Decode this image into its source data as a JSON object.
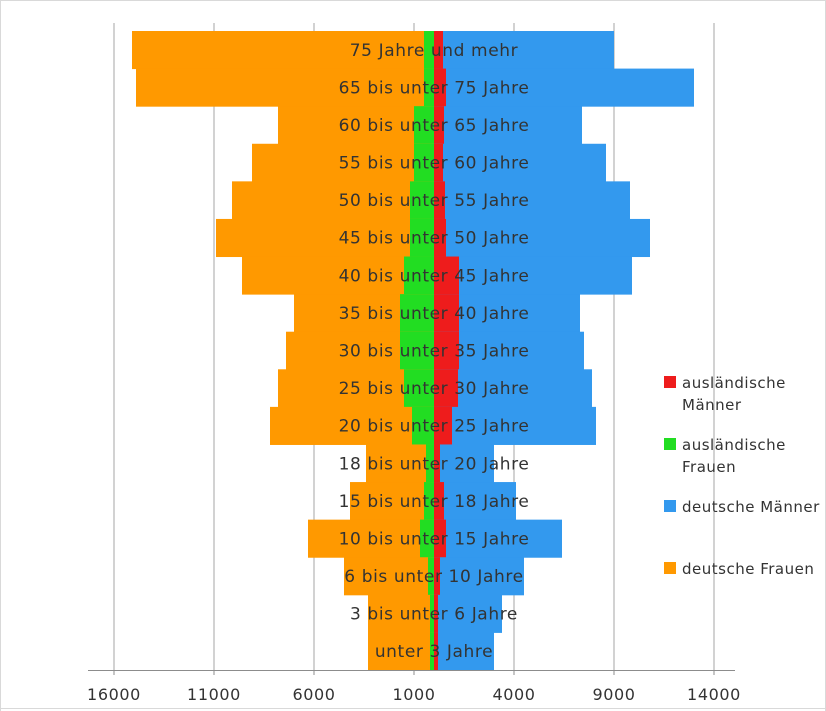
{
  "chart_data": {
    "type": "bar",
    "orientation": "horizontal-population-pyramid",
    "categories": [
      "75 Jahre und mehr",
      "65 bis unter 75 Jahre",
      "60 bis unter 65 Jahre",
      "55 bis unter 60 Jahre",
      "50 bis unter 55 Jahre",
      "45 bis unter 50 Jahre",
      "40 bis unter 45 Jahre",
      "35 bis unter 40 Jahre",
      "30 bis unter 35 Jahre",
      "25 bis unter 30 Jahre",
      "20 bis unter 25 Jahre",
      "18 bis unter 20 Jahre",
      "15 bis unter 18 Jahre",
      "10 bis unter 15 Jahre",
      "6 bis unter 10 Jahre",
      "3 bis unter 6 Jahre",
      "unter 3 Jahre"
    ],
    "series": [
      {
        "name": "ausländische Männer",
        "side": "right",
        "color": "#ee1c1c",
        "values": [
          450,
          600,
          500,
          450,
          550,
          600,
          1250,
          1250,
          1250,
          1200,
          900,
          300,
          500,
          600,
          300,
          200,
          200
        ]
      },
      {
        "name": "ausländische Frauen",
        "side": "left",
        "color": "#22dd22",
        "values": [
          500,
          500,
          1000,
          1000,
          1200,
          1200,
          1500,
          1700,
          1700,
          1500,
          1100,
          400,
          500,
          700,
          300,
          200,
          200
        ]
      },
      {
        "name": "deutsche Männer",
        "side": "right",
        "color": "#3399ee",
        "values": [
          9000,
          13000,
          7400,
          8600,
          9800,
          10800,
          9900,
          7300,
          7500,
          7900,
          8100,
          3000,
          4100,
          6400,
          4500,
          3400,
          3000
        ]
      },
      {
        "name": "deutsche Frauen",
        "side": "left",
        "color": "#ff9900",
        "values": [
          15100,
          14900,
          7800,
          9100,
          10100,
          10900,
          9600,
          7000,
          7400,
          7800,
          8200,
          3400,
          4200,
          6300,
          4500,
          3300,
          3300
        ]
      }
    ],
    "xticks": [
      "16000",
      "11000",
      "6000",
      "1000",
      "4000",
      "9000",
      "14000"
    ],
    "xlim_left": 16000,
    "xlim_right": 14000,
    "grid": "vertical",
    "legend_position": "right"
  }
}
